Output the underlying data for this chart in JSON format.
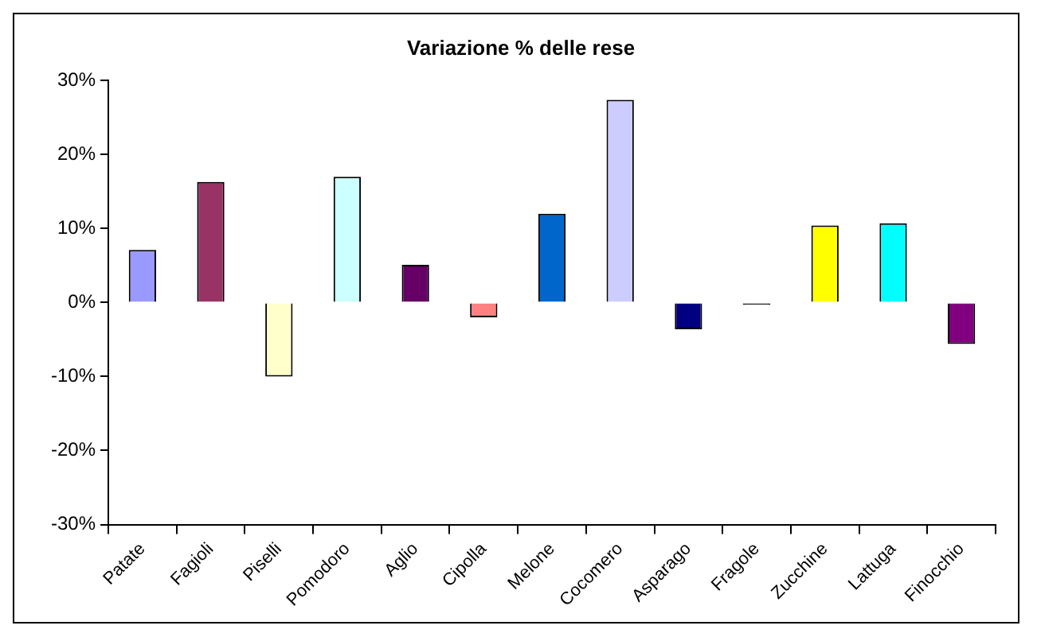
{
  "chart_data": {
    "type": "bar",
    "title": "Variazione % delle rese",
    "categories": [
      "Patate",
      "Fagioli",
      "Piselli",
      "Pomodoro",
      "Aglio",
      "Cipolla",
      "Melone",
      "Cocomero",
      "Asparago",
      "Fragole",
      "Zucchine",
      "Lattuga",
      "Finocchio"
    ],
    "values": [
      7.1,
      16.3,
      -10,
      17,
      5.1,
      -2,
      12,
      27.4,
      -3.6,
      -0.3,
      10.4,
      10.7,
      -5.6
    ],
    "colors": [
      "#9999ff",
      "#993366",
      "#ffffcc",
      "#ccffff",
      "#660066",
      "#ff8080",
      "#0066cc",
      "#ccccff",
      "#000080",
      "#000000",
      "#ffff00",
      "#00ffff",
      "#800080"
    ],
    "ylim": [
      -30,
      30
    ],
    "yticks": [
      {
        "value": -30,
        "label": "-30%"
      },
      {
        "value": -20,
        "label": "-20%"
      },
      {
        "value": -10,
        "label": "-10%"
      },
      {
        "value": 0,
        "label": "0%"
      },
      {
        "value": 10,
        "label": "10%"
      },
      {
        "value": 20,
        "label": "20%"
      },
      {
        "value": 30,
        "label": "30%"
      }
    ],
    "grid": false,
    "legend": false
  }
}
